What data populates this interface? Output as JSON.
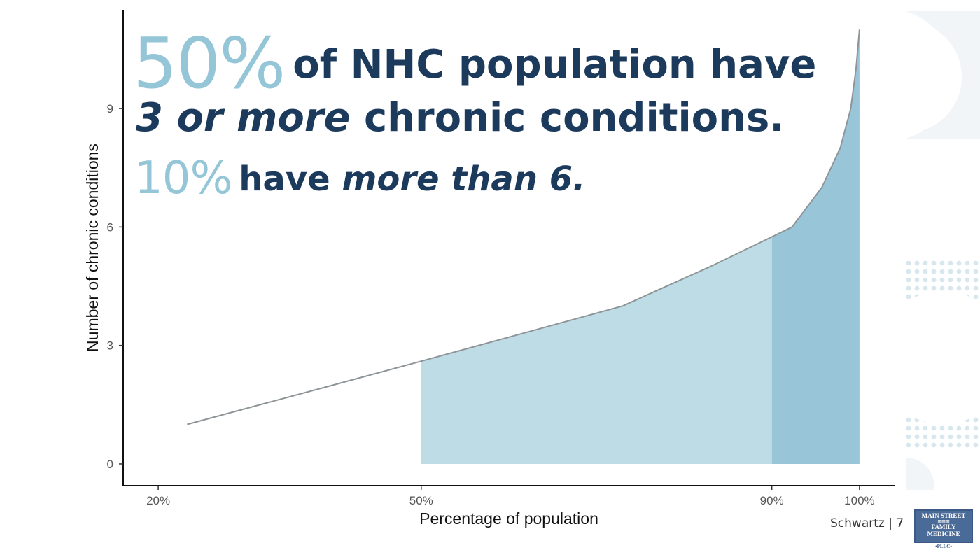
{
  "headline": {
    "line1_big": "50%",
    "line1_rest": "of NHC population have",
    "line2_em": "3 or more",
    "line2_rest": " chronic conditions.",
    "line3_big": "10%",
    "line3_have": "have ",
    "line3_em": "more than 6."
  },
  "footer": {
    "text": "Schwartz | 7"
  },
  "logo": {
    "line1": "MAIN STREET",
    "line2": "FAMILY MEDICINE",
    "line3": "•PLLC•"
  },
  "colors": {
    "headline": "#1b3a5c",
    "accent": "#94c6d7",
    "fill_light": "#bedce5",
    "fill_dark": "#98c6d8",
    "line": "#8e9598"
  },
  "chart_data": {
    "type": "area",
    "xlabel": "Percentage of population",
    "ylabel": "Number of chronic conditions",
    "x_ticks": [
      "20%",
      "50%",
      "90%",
      "100%"
    ],
    "x_tick_values": [
      20,
      50,
      90,
      100
    ],
    "y_ticks": [
      "0",
      "3",
      "6",
      "9"
    ],
    "y_tick_values": [
      0,
      3,
      6,
      9
    ],
    "xlim": [
      16,
      104
    ],
    "ylim": [
      -0.55,
      11.5
    ],
    "x": [
      23.3,
      40,
      50,
      73,
      83,
      90,
      92.3,
      95.7,
      97.8,
      99.0,
      99.6,
      100
    ],
    "y": [
      1.0,
      2.0,
      2.6,
      4.0,
      5.0,
      5.75,
      6.0,
      7.0,
      8.0,
      9.0,
      10.0,
      11.0
    ],
    "shaded_regions": [
      {
        "from": 50,
        "to": 90,
        "shade": "light"
      },
      {
        "from": 90,
        "to": 100,
        "shade": "dark"
      }
    ],
    "grid": false
  }
}
